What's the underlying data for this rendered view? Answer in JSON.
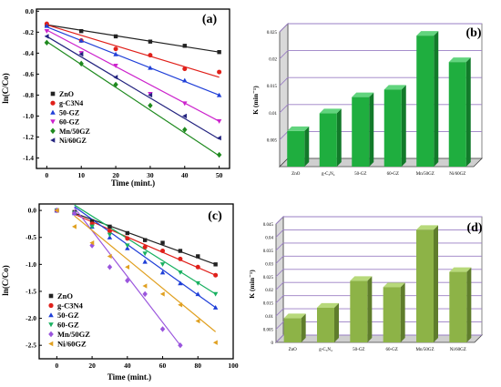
{
  "colors": {
    "ZnO": "#222222",
    "g-C3N4": "#e0201a",
    "50-GZ": "#1f3fd8",
    "60-GZ": "#cc22cc",
    "Mn/50GZ": "#1f8a1f",
    "Ni/60GZ": "#23237f",
    "c_60-GZ": "#18b060",
    "c_Mn/50GZ": "#9a55dd",
    "c_Ni/60GZ": "#e0a020",
    "bar_green": "#1fae3f",
    "bar_olive": "#8db347"
  },
  "chart_data": [
    {
      "id": "a",
      "panel_label": "(a)",
      "type": "scatter",
      "xlabel": "Time (mint.)",
      "ylabel": "ln(C/Co)",
      "xlim": [
        -3,
        53
      ],
      "ylim": [
        -1.5,
        0.02
      ],
      "xticks": [
        0,
        10,
        20,
        30,
        40,
        50
      ],
      "yticks": [
        0.0,
        -0.2,
        -0.4,
        -0.6,
        -0.8,
        -1.0,
        -1.2,
        -1.4
      ],
      "ytick_labels": [
        "0.0",
        "-0.2",
        "-0.4",
        "-0.6",
        "-0.8",
        "-1.0",
        "-1.2",
        "-1.4"
      ],
      "x": [
        0,
        10,
        20,
        30,
        40,
        50
      ],
      "legend_position": "lower-left",
      "series": [
        {
          "name": "ZnO",
          "marker": "square",
          "color_key": "ZnO",
          "values": [
            -0.13,
            -0.19,
            -0.24,
            -0.29,
            -0.33,
            -0.39
          ],
          "fit": [
            -0.13,
            -0.39
          ]
        },
        {
          "name": "g-C3N4",
          "marker": "circle",
          "color_key": "g-C3N4",
          "values": [
            -0.12,
            -0.28,
            -0.36,
            -0.42,
            -0.55,
            -0.58
          ],
          "fit": [
            -0.13,
            -0.63
          ]
        },
        {
          "name": "50-GZ",
          "marker": "triangle-up",
          "color_key": "50-GZ",
          "values": [
            -0.14,
            -0.28,
            -0.41,
            -0.54,
            -0.66,
            -0.8
          ],
          "fit": [
            -0.15,
            -0.8
          ]
        },
        {
          "name": "60-GZ",
          "marker": "triangle-down",
          "color_key": "60-GZ",
          "values": [
            -0.19,
            -0.4,
            -0.52,
            -0.79,
            -0.88,
            -1.05
          ],
          "fit": [
            -0.18,
            -1.05
          ]
        },
        {
          "name": "Mn/50GZ",
          "marker": "diamond",
          "color_key": "Mn/50GZ",
          "values": [
            -0.3,
            -0.5,
            -0.7,
            -0.9,
            -1.13,
            -1.37
          ],
          "fit": [
            -0.29,
            -1.38
          ]
        },
        {
          "name": "Ni/60GZ",
          "marker": "triangle-left",
          "color_key": "Ni/60GZ",
          "values": [
            -0.24,
            -0.41,
            -0.63,
            -0.8,
            -1.0,
            -1.21
          ],
          "fit": [
            -0.24,
            -1.22
          ]
        }
      ]
    },
    {
      "id": "b",
      "panel_label": "(b)",
      "type": "bar",
      "ylabel": "K (min⁻¹)",
      "ylim": [
        0,
        0.025
      ],
      "yticks": [
        0.005,
        0.01,
        0.015,
        0.02,
        0.025
      ],
      "ytick_labels": [
        "0.005",
        "0.01",
        "0.015",
        "0.02",
        "0.025"
      ],
      "categories": [
        "ZnO",
        "g-C₃N₄",
        "50-GZ",
        "60-GZ",
        "Mn/50GZ",
        "Ni/60GZ"
      ],
      "values": [
        0.0066,
        0.0099,
        0.0129,
        0.0143,
        0.0243,
        0.0194
      ],
      "color_key": "bar_green"
    },
    {
      "id": "c",
      "panel_label": "(c)",
      "type": "scatter",
      "xlabel": "Time (mint.)",
      "ylabel": "ln(C/Co)",
      "xlim": [
        -10,
        100
      ],
      "ylim": [
        -2.75,
        0.12
      ],
      "xticks": [
        0,
        20,
        40,
        60,
        80,
        100
      ],
      "yticks": [
        0.0,
        -0.5,
        -1.0,
        -1.5,
        -2.0,
        -2.5
      ],
      "ytick_labels": [
        "0.0",
        "-0.5",
        "-1.0",
        "-1.5",
        "-2.0",
        "-2.5"
      ],
      "legend_position": "lower-left",
      "series": [
        {
          "name": "ZnO",
          "marker": "square",
          "color_key": "ZnO",
          "x": [
            0,
            10,
            20,
            30,
            40,
            50,
            60,
            70,
            80,
            90
          ],
          "values": [
            0,
            -0.03,
            -0.2,
            -0.3,
            -0.42,
            -0.55,
            -0.6,
            -0.75,
            -0.85,
            -1.0
          ],
          "fit_x": [
            10,
            90
          ],
          "fit": [
            -0.05,
            -1.0
          ]
        },
        {
          "name": "g-C3N4",
          "marker": "circle",
          "color_key": "g-C3N4",
          "x": [
            0,
            10,
            20,
            30,
            40,
            50,
            60,
            70,
            80,
            90
          ],
          "values": [
            0,
            -0.05,
            -0.25,
            -0.38,
            -0.52,
            -0.68,
            -0.75,
            -0.9,
            -1.05,
            -1.2
          ],
          "fit_x": [
            10,
            90
          ],
          "fit": [
            -0.07,
            -1.2
          ]
        },
        {
          "name": "50-GZ",
          "marker": "triangle-up",
          "color_key": "50-GZ",
          "x": [
            0,
            10,
            20,
            30,
            40,
            50,
            60,
            70,
            80,
            90
          ],
          "values": [
            0,
            -0.05,
            -0.3,
            -0.5,
            -0.7,
            -0.95,
            -1.15,
            -1.35,
            -1.55,
            -1.8
          ],
          "fit_x": [
            10,
            90
          ],
          "fit": [
            0.07,
            -1.8
          ]
        },
        {
          "name": "60-GZ",
          "marker": "triangle-down",
          "color_key": "c_60-GZ",
          "x": [
            0,
            10,
            20,
            30,
            40,
            50,
            60,
            70,
            80,
            90
          ],
          "values": [
            0,
            -0.05,
            -0.3,
            -0.45,
            -0.65,
            -0.8,
            -1.0,
            -1.15,
            -1.35,
            -1.55
          ],
          "fit_x": [
            10,
            90
          ],
          "fit": [
            0.1,
            -1.55
          ]
        },
        {
          "name": "Mn/50GZ",
          "marker": "diamond",
          "color_key": "c_Mn/50GZ",
          "x": [
            0,
            10,
            20,
            30,
            40,
            50,
            60,
            70
          ],
          "values": [
            0,
            -0.05,
            -0.65,
            -1.05,
            -1.3,
            -1.55,
            -2.2,
            -2.5
          ],
          "fit_x": [
            10,
            70
          ],
          "fit": [
            0.05,
            -2.5
          ]
        },
        {
          "name": "Ni/60GZ",
          "marker": "triangle-left",
          "color_key": "c_Ni/60GZ",
          "x": [
            0,
            10,
            20,
            30,
            40,
            50,
            60,
            70,
            80,
            90
          ],
          "values": [
            0,
            -0.3,
            -0.6,
            -0.85,
            -1.05,
            -1.4,
            -1.55,
            -1.75,
            -2.05,
            -2.45
          ],
          "fit_x": [
            10,
            90
          ],
          "fit": [
            -0.1,
            -2.25
          ]
        }
      ]
    },
    {
      "id": "d",
      "panel_label": "(d)",
      "type": "bar",
      "ylabel": "K (min⁻¹)",
      "ylim": [
        0,
        0.045
      ],
      "yticks": [
        0,
        0.005,
        0.01,
        0.015,
        0.02,
        0.025,
        0.03,
        0.035,
        0.04,
        0.045
      ],
      "ytick_labels": [
        "0",
        "0.005",
        "0.01",
        "0.015",
        "0.02",
        "0.025",
        "0.03",
        "0.035",
        "0.04",
        "0.045"
      ],
      "categories": [
        "ZnO",
        "g-C₃N₄",
        "50-GZ",
        "60-GZ",
        "Mn/50GZ",
        "Ni/60GZ"
      ],
      "values": [
        0.0092,
        0.0132,
        0.0234,
        0.021,
        0.0428,
        0.0268
      ],
      "color_key": "bar_olive"
    }
  ]
}
